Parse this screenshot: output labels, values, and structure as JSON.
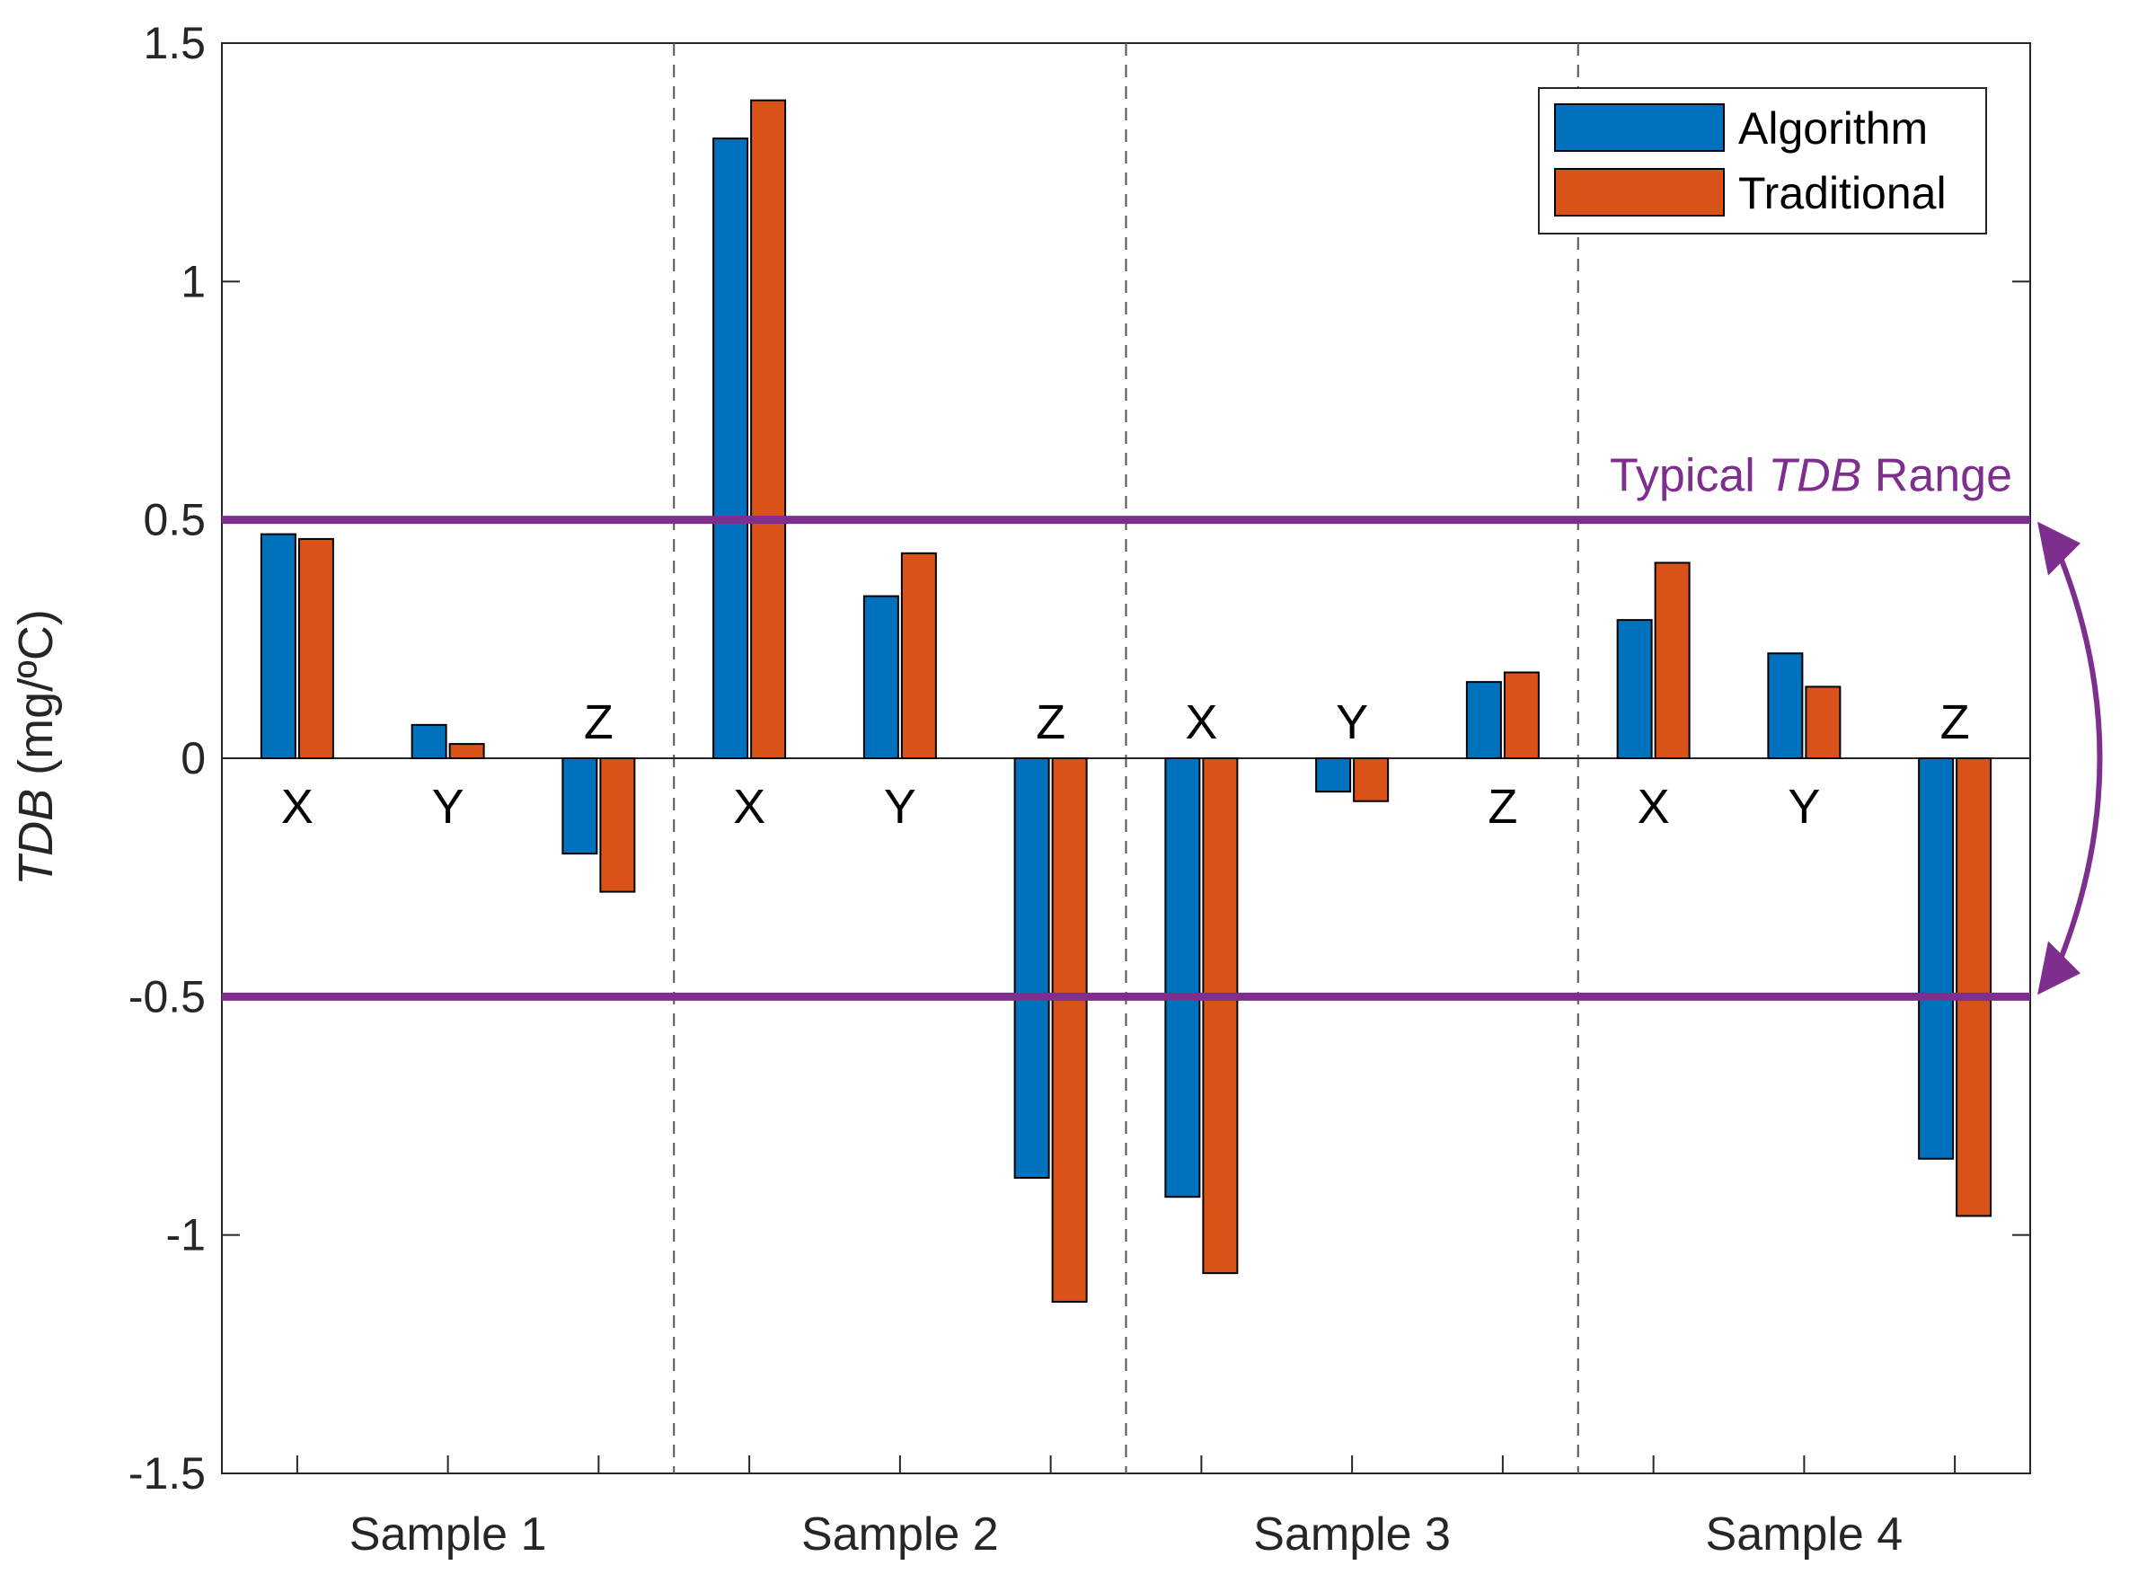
{
  "chart_data": {
    "type": "bar",
    "ylabel": {
      "italic": "TDB",
      "normal": " (mg/ºC)"
    },
    "xlabel": "",
    "ylim": [
      -1.5,
      1.5
    ],
    "yticks": [
      {
        "value": 1.5,
        "label": "1.5"
      },
      {
        "value": 1,
        "label": "1"
      },
      {
        "value": 0.5,
        "label": "0.5"
      },
      {
        "value": 0,
        "label": "0"
      },
      {
        "value": -0.5,
        "label": "-0.5"
      },
      {
        "value": -1,
        "label": "-1"
      },
      {
        "value": -1.5,
        "label": "-1.5"
      }
    ],
    "groups": [
      "Sample 1",
      "Sample 2",
      "Sample 3",
      "Sample 4"
    ],
    "categories": [
      "X",
      "Y",
      "Z",
      "X",
      "Y",
      "Z",
      "X",
      "Y",
      "Z",
      "X",
      "Y",
      "Z"
    ],
    "series": [
      {
        "name": "Algorithm",
        "color": "#0072BD",
        "values": [
          0.47,
          0.07,
          -0.2,
          1.3,
          0.34,
          -0.88,
          -0.92,
          -0.07,
          0.16,
          0.29,
          0.22,
          -0.84
        ]
      },
      {
        "name": "Traditional",
        "color": "#D95319",
        "values": [
          0.46,
          0.03,
          -0.28,
          1.38,
          0.43,
          -1.14,
          -1.08,
          -0.09,
          0.18,
          0.41,
          0.15,
          -0.96
        ]
      }
    ],
    "reference_lines": {
      "values": [
        0.5,
        -0.5
      ],
      "color": "#7E2F8E"
    },
    "annotation": {
      "prefix": "Typical ",
      "italic": "TDB",
      "suffix": " Range",
      "color": "#7E2F8E"
    },
    "legend_position": "top-right"
  }
}
